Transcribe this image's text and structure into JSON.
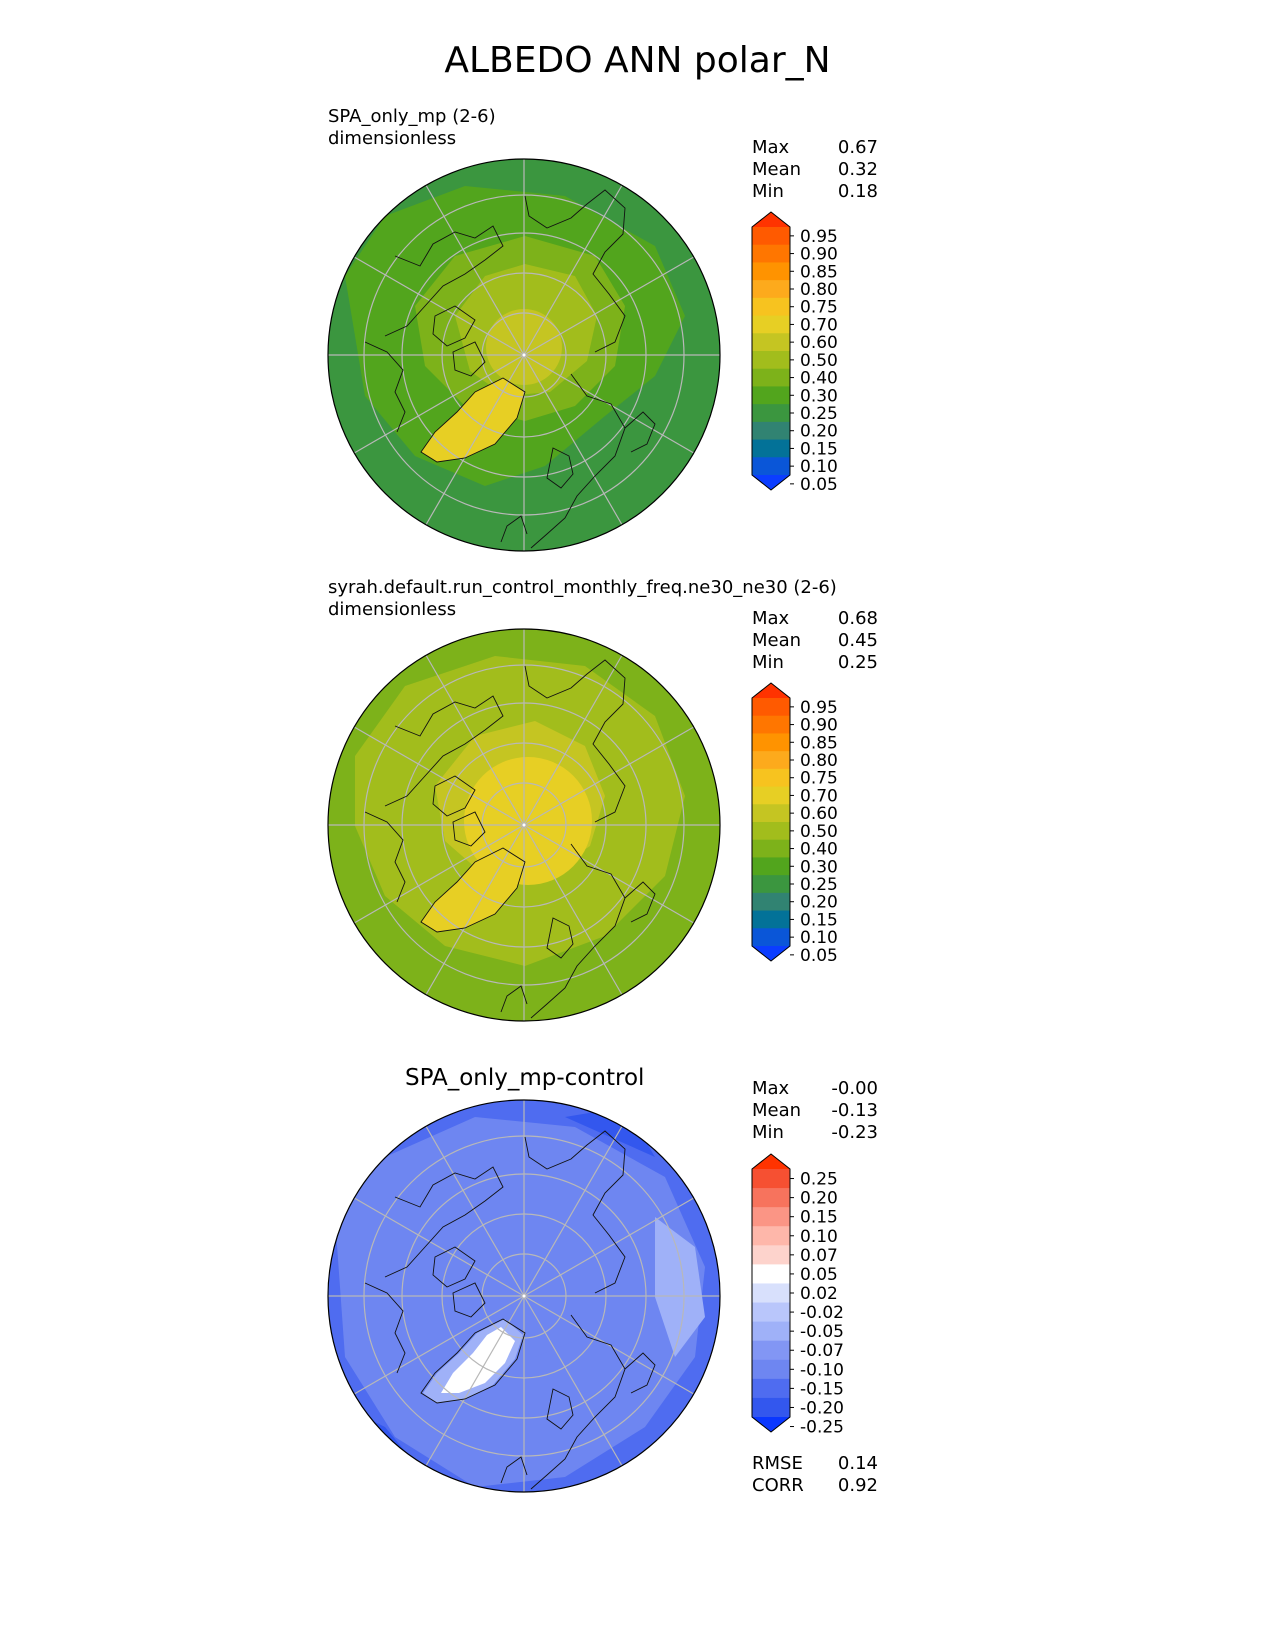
{
  "page_title": "ALBEDO ANN polar_N",
  "panels": [
    {
      "title": "SPA_only_mp (2-6)",
      "units": "dimensionless",
      "stats": [
        {
          "label": "Max",
          "value": "0.67"
        },
        {
          "label": "Mean",
          "value": "0.32"
        },
        {
          "label": "Min",
          "value": "0.18"
        }
      ]
    },
    {
      "title": "syrah.default.run_control_monthly_freq.ne30_ne30 (2-6)",
      "units": "dimensionless",
      "stats": [
        {
          "label": "Max",
          "value": "0.68"
        },
        {
          "label": "Mean",
          "value": "0.45"
        },
        {
          "label": "Min",
          "value": "0.25"
        }
      ]
    },
    {
      "title": "SPA_only_mp-control",
      "stats": [
        {
          "label": "Max",
          "value": "-0.00"
        },
        {
          "label": "Mean",
          "value": "-0.13"
        },
        {
          "label": "Min",
          "value": "-0.23"
        }
      ],
      "metrics": [
        {
          "label": "RMSE",
          "value": "0.14"
        },
        {
          "label": "CORR",
          "value": "0.92"
        }
      ]
    }
  ],
  "colorbars": {
    "albedo": {
      "ticks": [
        "0.95",
        "0.90",
        "0.85",
        "0.80",
        "0.75",
        "0.70",
        "0.60",
        "0.50",
        "0.40",
        "0.30",
        "0.25",
        "0.20",
        "0.15",
        "0.10",
        "0.05"
      ],
      "colors": [
        "#ff3300",
        "#ff5a00",
        "#ff7600",
        "#ff9300",
        "#fdaa1c",
        "#f7c31f",
        "#e7cf24",
        "#c5c522",
        "#a2bd1c",
        "#7db21a",
        "#52a51d",
        "#3b963f",
        "#318372",
        "#037298",
        "#0a56d8",
        "#0b3dff"
      ]
    },
    "difference": {
      "ticks": [
        "0.25",
        "0.20",
        "0.15",
        "0.10",
        "0.07",
        "0.05",
        "0.02",
        "-0.02",
        "-0.05",
        "-0.07",
        "-0.10",
        "-0.15",
        "-0.20",
        "-0.25"
      ],
      "colors": [
        "#ff3300",
        "#f65032",
        "#f7735d",
        "#fb9585",
        "#feb7aa",
        "#fdd3cc",
        "#ffffff",
        "#d8e0fc",
        "#b9c6fb",
        "#9fb1f8",
        "#8296f4",
        "#6e86f1",
        "#4f6cf0",
        "#3357ee",
        "#0a37ff"
      ]
    }
  },
  "map_colors": {
    "field_dark": "#3b963f",
    "field_mid": "#52a51d",
    "field_light": "#7db21a",
    "field_yellowgreen": "#a2bd1c",
    "field_yellow": "#e7cf24",
    "diff_deep": "#3357ee",
    "diff_mid": "#4f6cf0",
    "diff_light": "#6e86f1",
    "diff_pale": "#9fb1f8",
    "diff_white": "#ffffff",
    "coast": "#111111",
    "grid": "#b8b8b8"
  }
}
